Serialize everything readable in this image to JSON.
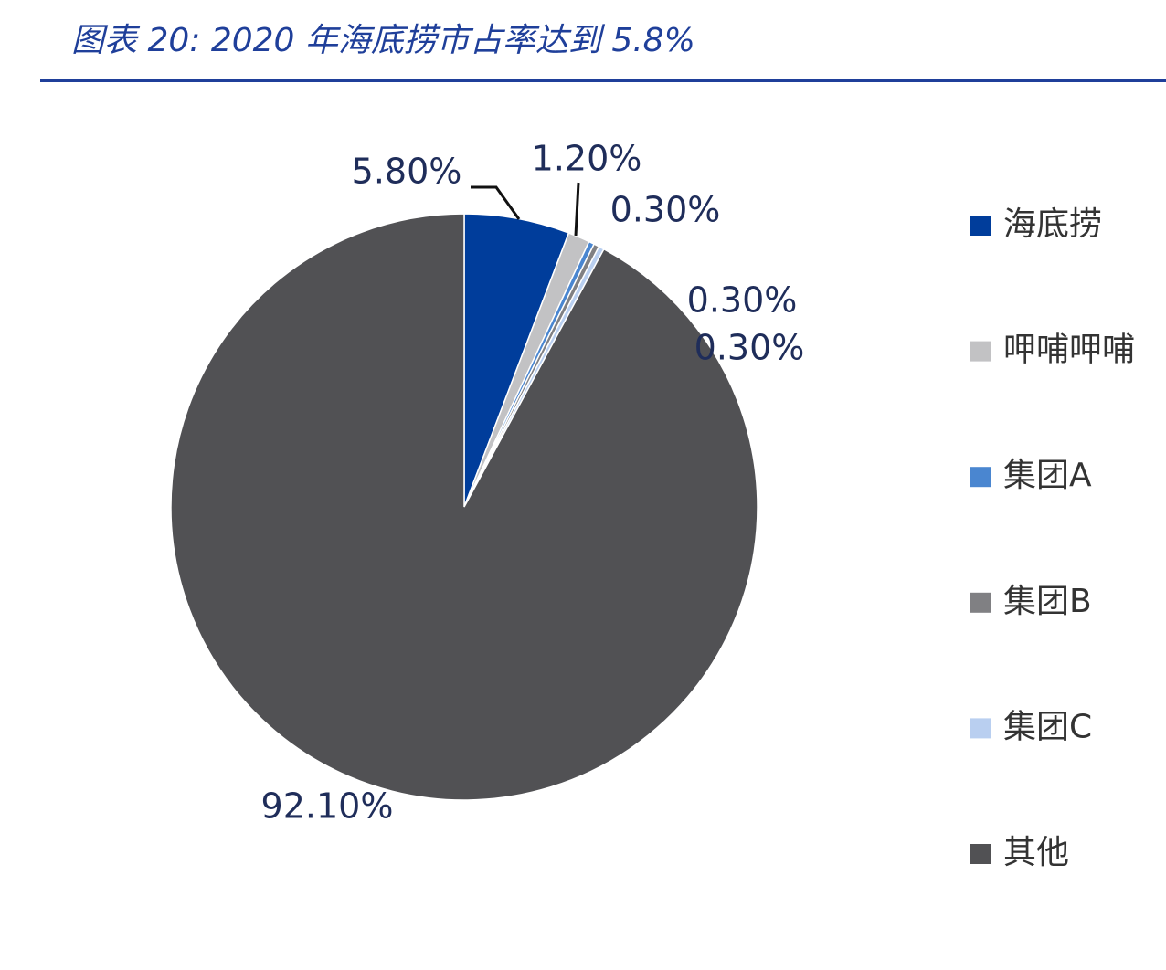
{
  "chart_data": {
    "type": "pie",
    "title": "图表 20:  2020 年海底捞市占率达到 5.8%",
    "categories": [
      "海底捞",
      "呷哺呷哺",
      "集团A",
      "集团B",
      "集团C",
      "其他"
    ],
    "values": [
      5.8,
      1.2,
      0.3,
      0.3,
      0.3,
      92.1
    ],
    "value_labels": [
      "5.80%",
      "1.20%",
      "0.30%",
      "0.30%",
      "0.30%",
      "92.10%"
    ],
    "colors": [
      "#003d9b",
      "#c2c2c4",
      "#4a86d0",
      "#808083",
      "#b9cff0",
      "#515154"
    ],
    "legend": "right"
  }
}
